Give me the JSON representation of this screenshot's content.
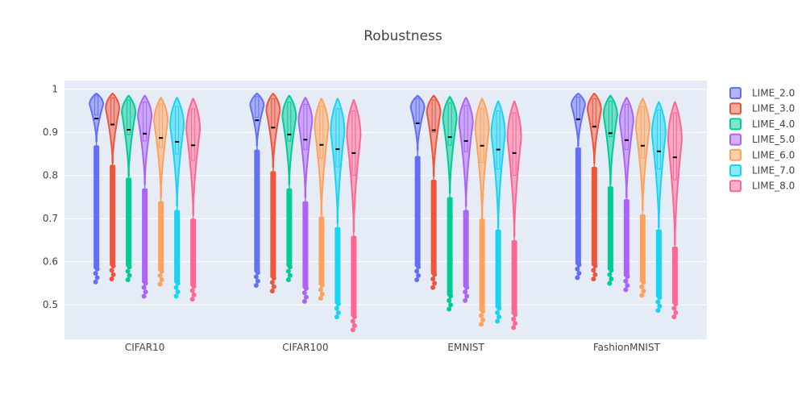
{
  "chart_data": {
    "type": "violin",
    "title": "Robustness",
    "categories": [
      "CIFAR10",
      "CIFAR100",
      "EMNIST",
      "FashionMNIST"
    ],
    "y_ticks": [
      "0.5",
      "0.6",
      "0.7",
      "0.8",
      "0.9",
      "1"
    ],
    "ylim": [
      0.42,
      1.02
    ],
    "grid": true,
    "legend": "top-right",
    "series": [
      {
        "name": "LIME_2.0",
        "color": "#636efa",
        "mean": [
          0.932,
          0.928,
          0.921,
          0.93
        ],
        "median": [
          0.965,
          0.962,
          0.957,
          0.963
        ],
        "q3": [
          0.985,
          0.983,
          0.979,
          0.982
        ],
        "q1": [
          0.94,
          0.935,
          0.925,
          0.932
        ],
        "kde_max": [
          0.99,
          0.99,
          0.985,
          0.99
        ],
        "kde_min": [
          0.88,
          0.87,
          0.86,
          0.87
        ],
        "whisker_low": [
          0.87,
          0.86,
          0.845,
          0.865
        ],
        "min": [
          0.553,
          0.545,
          0.558,
          0.563
        ]
      },
      {
        "name": "LIME_3.0",
        "color": "#ef553b",
        "mean": [
          0.918,
          0.911,
          0.905,
          0.913
        ],
        "median": [
          0.955,
          0.95,
          0.946,
          0.952
        ],
        "q3": [
          0.98,
          0.978,
          0.975,
          0.978
        ],
        "q1": [
          0.92,
          0.91,
          0.9,
          0.915
        ],
        "kde_max": [
          0.99,
          0.99,
          0.985,
          0.99
        ],
        "kde_min": [
          0.83,
          0.82,
          0.8,
          0.83
        ],
        "whisker_low": [
          0.825,
          0.81,
          0.79,
          0.82
        ],
        "min": [
          0.56,
          0.532,
          0.54,
          0.56
        ]
      },
      {
        "name": "LIME_4.0",
        "color": "#00cc96",
        "mean": [
          0.906,
          0.895,
          0.889,
          0.898
        ],
        "median": [
          0.945,
          0.935,
          0.93,
          0.94
        ],
        "q3": [
          0.975,
          0.97,
          0.968,
          0.972
        ],
        "q1": [
          0.895,
          0.88,
          0.87,
          0.89
        ],
        "kde_max": [
          0.985,
          0.985,
          0.982,
          0.985
        ],
        "kde_min": [
          0.8,
          0.78,
          0.76,
          0.78
        ],
        "whisker_low": [
          0.795,
          0.77,
          0.75,
          0.775
        ],
        "min": [
          0.558,
          0.558,
          0.49,
          0.55
        ]
      },
      {
        "name": "LIME_5.0",
        "color": "#ab63fa",
        "mean": [
          0.897,
          0.883,
          0.88,
          0.882
        ],
        "median": [
          0.935,
          0.925,
          0.92,
          0.925
        ],
        "q3": [
          0.97,
          0.965,
          0.962,
          0.965
        ],
        "q1": [
          0.88,
          0.86,
          0.855,
          0.86
        ],
        "kde_max": [
          0.985,
          0.98,
          0.98,
          0.98
        ],
        "kde_min": [
          0.78,
          0.75,
          0.73,
          0.75
        ],
        "whisker_low": [
          0.77,
          0.74,
          0.72,
          0.745
        ],
        "min": [
          0.52,
          0.508,
          0.51,
          0.535
        ]
      },
      {
        "name": "LIME_6.0",
        "color": "#ffa15a",
        "mean": [
          0.887,
          0.871,
          0.869,
          0.869
        ],
        "median": [
          0.925,
          0.91,
          0.905,
          0.91
        ],
        "q3": [
          0.965,
          0.96,
          0.955,
          0.96
        ],
        "q1": [
          0.865,
          0.84,
          0.83,
          0.84
        ],
        "kde_max": [
          0.98,
          0.978,
          0.978,
          0.978
        ],
        "kde_min": [
          0.75,
          0.71,
          0.7,
          0.72
        ],
        "whisker_low": [
          0.74,
          0.705,
          0.7,
          0.71
        ],
        "min": [
          0.548,
          0.515,
          0.455,
          0.522
        ]
      },
      {
        "name": "LIME_7.0",
        "color": "#19d3f3",
        "mean": [
          0.878,
          0.861,
          0.86,
          0.856
        ],
        "median": [
          0.915,
          0.9,
          0.895,
          0.895
        ],
        "q3": [
          0.96,
          0.955,
          0.95,
          0.952
        ],
        "q1": [
          0.85,
          0.82,
          0.815,
          0.815
        ],
        "kde_max": [
          0.98,
          0.978,
          0.972,
          0.97
        ],
        "kde_min": [
          0.73,
          0.69,
          0.68,
          0.68
        ],
        "whisker_low": [
          0.72,
          0.68,
          0.675,
          0.675
        ],
        "min": [
          0.52,
          0.472,
          0.462,
          0.487
        ]
      },
      {
        "name": "LIME_8.0",
        "color": "#ff6692",
        "mean": [
          0.87,
          0.852,
          0.852,
          0.842
        ],
        "median": [
          0.905,
          0.89,
          0.885,
          0.88
        ],
        "q3": [
          0.955,
          0.95,
          0.945,
          0.945
        ],
        "q1": [
          0.835,
          0.8,
          0.8,
          0.79
        ],
        "kde_max": [
          0.978,
          0.975,
          0.972,
          0.97
        ],
        "kde_min": [
          0.71,
          0.67,
          0.66,
          0.64
        ],
        "whisker_low": [
          0.7,
          0.66,
          0.65,
          0.635
        ],
        "min": [
          0.513,
          0.442,
          0.447,
          0.472
        ]
      }
    ]
  }
}
